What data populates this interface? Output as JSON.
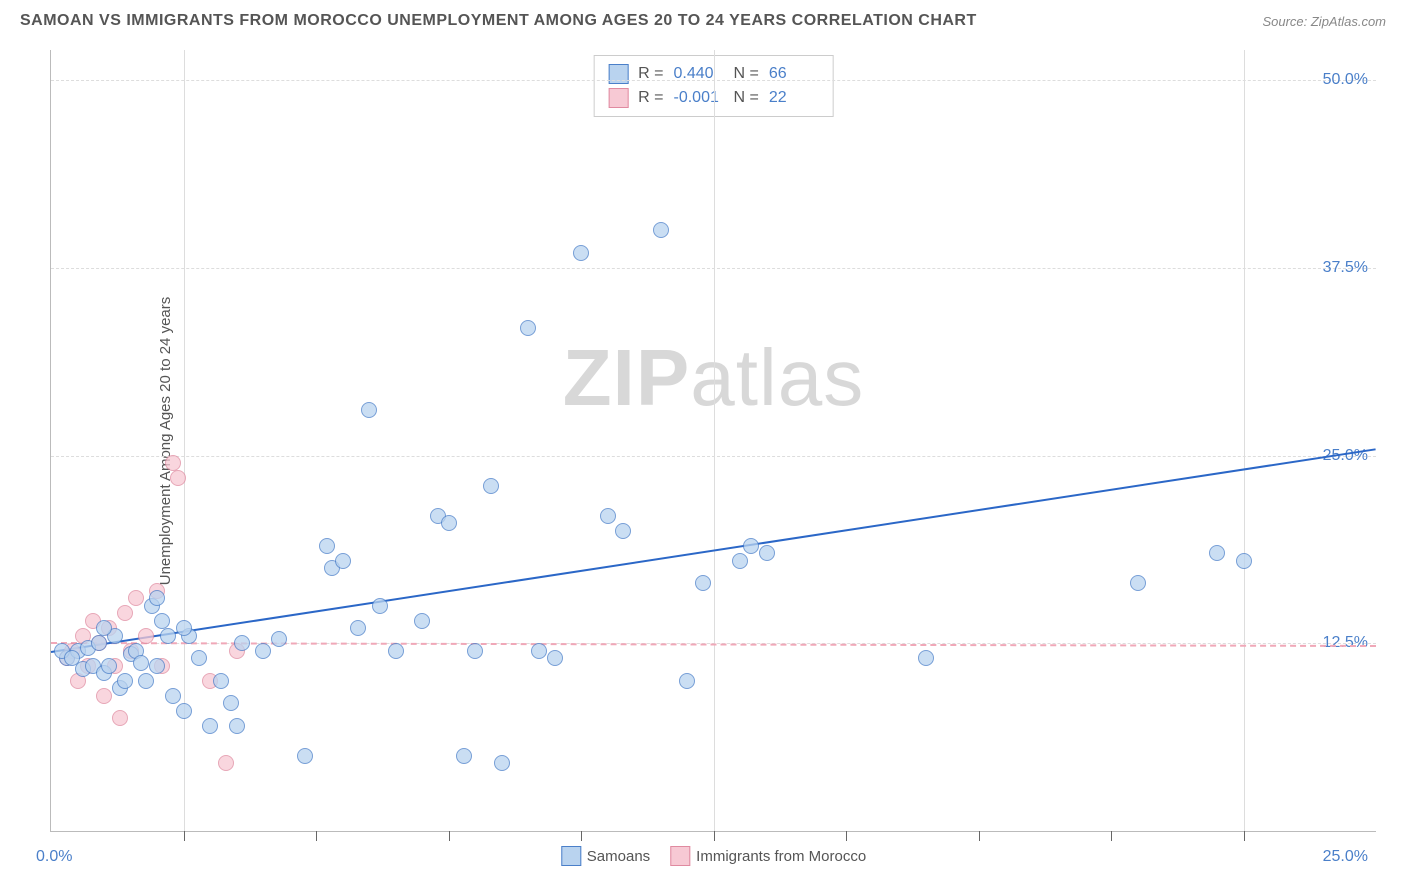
{
  "header": {
    "title": "SAMOAN VS IMMIGRANTS FROM MOROCCO UNEMPLOYMENT AMONG AGES 20 TO 24 YEARS CORRELATION CHART",
    "source": "Source: ZipAtlas.com"
  },
  "watermark": {
    "part1": "ZIP",
    "part2": "atlas"
  },
  "y_axis_title": "Unemployment Among Ages 20 to 24 years",
  "stats": {
    "series": [
      {
        "r_label": "R =",
        "r": "0.440",
        "n_label": "N =",
        "n": "66",
        "swatch_fill": "#b9d3ef",
        "swatch_border": "#4a7fc9"
      },
      {
        "r_label": "R =",
        "r": "-0.001",
        "n_label": "N =",
        "n": "22",
        "swatch_fill": "#f7c9d4",
        "swatch_border": "#e08aa0"
      }
    ]
  },
  "legend": {
    "items": [
      {
        "label": "Samoans",
        "swatch_fill": "#b9d3ef",
        "swatch_border": "#4a7fc9"
      },
      {
        "label": "Immigrants from Morocco",
        "swatch_fill": "#f7c9d4",
        "swatch_border": "#e08aa0"
      }
    ]
  },
  "chart": {
    "type": "scatter",
    "xlim": [
      0,
      25
    ],
    "ylim": [
      0,
      52
    ],
    "y_ticks": [
      {
        "v": 50.0,
        "label": "50.0%"
      },
      {
        "v": 37.5,
        "label": "37.5%"
      },
      {
        "v": 25.0,
        "label": "25.0%"
      },
      {
        "v": 12.5,
        "label": "12.5%"
      }
    ],
    "x_gridlines": [
      2.5,
      12.5,
      22.5
    ],
    "x_ticks_major": [
      2.5,
      5.0,
      7.5,
      10.0,
      12.5,
      15.0,
      17.5,
      20.0,
      22.5
    ],
    "x_label_min": "0.0%",
    "x_label_max": "25.0%",
    "grid_color": "#dddddd",
    "point_radius": 8,
    "series_a": {
      "color_fill": "#b9d3ef",
      "color_border": "#4a7fc9",
      "opacity": 0.75,
      "trend": {
        "x1": 0,
        "y1": 12.0,
        "x2": 25,
        "y2": 25.5,
        "color": "#2b67c7",
        "width": 2
      },
      "points": [
        [
          0.3,
          11.5
        ],
        [
          0.5,
          12.0
        ],
        [
          0.6,
          10.8
        ],
        [
          0.7,
          12.2
        ],
        [
          0.8,
          11.0
        ],
        [
          0.9,
          12.5
        ],
        [
          1.0,
          10.5
        ],
        [
          1.1,
          11.0
        ],
        [
          1.2,
          13.0
        ],
        [
          1.3,
          9.5
        ],
        [
          1.4,
          10.0
        ],
        [
          1.5,
          11.8
        ],
        [
          1.6,
          12.0
        ],
        [
          1.7,
          11.2
        ],
        [
          1.8,
          10.0
        ],
        [
          1.9,
          15.0
        ],
        [
          2.0,
          15.5
        ],
        [
          2.1,
          14.0
        ],
        [
          2.2,
          13.0
        ],
        [
          2.3,
          9.0
        ],
        [
          2.5,
          8.0
        ],
        [
          2.6,
          13.0
        ],
        [
          2.8,
          11.5
        ],
        [
          3.0,
          7.0
        ],
        [
          3.2,
          10.0
        ],
        [
          3.4,
          8.5
        ],
        [
          3.5,
          7.0
        ],
        [
          3.6,
          12.5
        ],
        [
          4.0,
          12.0
        ],
        [
          4.3,
          12.8
        ],
        [
          4.8,
          5.0
        ],
        [
          5.2,
          19.0
        ],
        [
          5.3,
          17.5
        ],
        [
          5.5,
          18.0
        ],
        [
          5.8,
          13.5
        ],
        [
          6.0,
          28.0
        ],
        [
          6.2,
          15.0
        ],
        [
          6.5,
          12.0
        ],
        [
          7.0,
          14.0
        ],
        [
          7.3,
          21.0
        ],
        [
          7.5,
          20.5
        ],
        [
          7.8,
          5.0
        ],
        [
          8.0,
          12.0
        ],
        [
          8.3,
          23.0
        ],
        [
          8.5,
          4.5
        ],
        [
          9.0,
          33.5
        ],
        [
          9.2,
          12.0
        ],
        [
          9.5,
          11.5
        ],
        [
          10.0,
          38.5
        ],
        [
          10.5,
          21.0
        ],
        [
          10.8,
          20.0
        ],
        [
          11.5,
          40.0
        ],
        [
          12.0,
          10.0
        ],
        [
          12.3,
          16.5
        ],
        [
          13.0,
          18.0
        ],
        [
          13.2,
          19.0
        ],
        [
          13.5,
          18.5
        ],
        [
          16.5,
          11.5
        ],
        [
          20.5,
          16.5
        ],
        [
          22.0,
          18.5
        ],
        [
          22.5,
          18.0
        ],
        [
          0.2,
          12.0
        ],
        [
          0.4,
          11.5
        ],
        [
          1.0,
          13.5
        ],
        [
          2.0,
          11.0
        ],
        [
          2.5,
          13.5
        ]
      ]
    },
    "series_b": {
      "color_fill": "#f7c9d4",
      "color_border": "#e08aa0",
      "opacity": 0.75,
      "trend": {
        "x1": 0,
        "y1": 12.6,
        "x2": 25,
        "y2": 12.4,
        "color": "#f0a8b8",
        "width": 2,
        "dashed": true
      },
      "points": [
        [
          0.3,
          11.5
        ],
        [
          0.4,
          12.0
        ],
        [
          0.5,
          10.0
        ],
        [
          0.6,
          13.0
        ],
        [
          0.7,
          11.0
        ],
        [
          0.8,
          14.0
        ],
        [
          0.9,
          12.5
        ],
        [
          1.0,
          9.0
        ],
        [
          1.1,
          13.5
        ],
        [
          1.2,
          11.0
        ],
        [
          1.3,
          7.5
        ],
        [
          1.4,
          14.5
        ],
        [
          1.5,
          12.0
        ],
        [
          1.6,
          15.5
        ],
        [
          1.8,
          13.0
        ],
        [
          2.0,
          16.0
        ],
        [
          2.1,
          11.0
        ],
        [
          2.3,
          24.5
        ],
        [
          2.4,
          23.5
        ],
        [
          3.0,
          10.0
        ],
        [
          3.3,
          4.5
        ],
        [
          3.5,
          12.0
        ]
      ]
    }
  }
}
